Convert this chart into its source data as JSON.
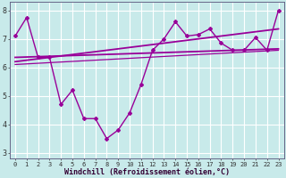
{
  "xlabel": "Windchill (Refroidissement éolien,°C)",
  "background_color": "#c8eaea",
  "grid_color": "#ffffff",
  "line_color": "#990099",
  "xlim": [
    -0.5,
    23.5
  ],
  "ylim": [
    2.8,
    8.3
  ],
  "xtick_labels": [
    "0",
    "1",
    "2",
    "3",
    "4",
    "5",
    "6",
    "7",
    "8",
    "9",
    "10",
    "11",
    "12",
    "13",
    "14",
    "15",
    "16",
    "17",
    "18",
    "19",
    "20",
    "21",
    "22",
    "23"
  ],
  "ytick_labels": [
    "3",
    "4",
    "5",
    "6",
    "7",
    "8"
  ],
  "ytick_vals": [
    3,
    4,
    5,
    6,
    7,
    8
  ],
  "curve_main_x": [
    0,
    1,
    2,
    3,
    4,
    5,
    6,
    7,
    8,
    9,
    10,
    11,
    12,
    13,
    14,
    15,
    16,
    17,
    18,
    19,
    20,
    21,
    22,
    23
  ],
  "curve_main_y": [
    7.1,
    7.75,
    6.35,
    6.35,
    4.7,
    5.2,
    4.2,
    4.2,
    3.5,
    3.8,
    4.4,
    5.4,
    6.6,
    7.0,
    7.6,
    7.1,
    7.15,
    7.35,
    6.85,
    6.6,
    6.6,
    7.05,
    6.6,
    8.0
  ],
  "line1_x": [
    0,
    23
  ],
  "line1_y": [
    6.35,
    6.65
  ],
  "line2_x": [
    0,
    23
  ],
  "line2_y": [
    6.2,
    7.35
  ],
  "line3_x": [
    0,
    23
  ],
  "line3_y": [
    6.1,
    6.6
  ]
}
